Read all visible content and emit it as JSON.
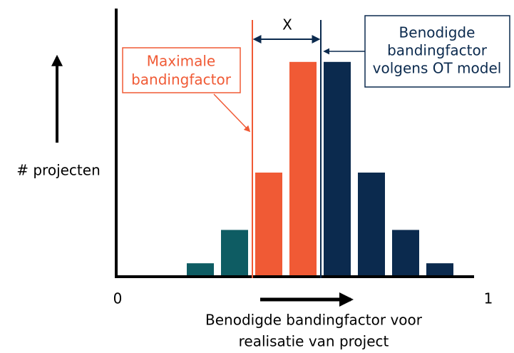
{
  "chart_data": {
    "type": "bar",
    "categories": [
      null,
      null,
      null,
      null,
      null,
      null,
      null,
      null
    ],
    "values": [
      4.5,
      17,
      38.5,
      80,
      80,
      38.5,
      17,
      4.5
    ],
    "colors": [
      "#0e5c63",
      "#0e5c63",
      "#f05a35",
      "#f05a35",
      "#0b2a4e",
      "#0b2a4e",
      "#0b2a4e",
      "#0b2a4e"
    ],
    "ylim": [
      0,
      100
    ],
    "xlim": [
      0,
      1
    ],
    "xticks": [
      0,
      1
    ],
    "y_label": "# projecten",
    "x_label": [
      "Benodigde bandingfactor voor",
      "realisatie van project"
    ],
    "annotations": {
      "gap": "X",
      "max_label": [
        "Maximale",
        "bandingfactor"
      ],
      "ot_label": [
        "Benodigde",
        "bandingfactor",
        "volgens OT model"
      ]
    }
  }
}
